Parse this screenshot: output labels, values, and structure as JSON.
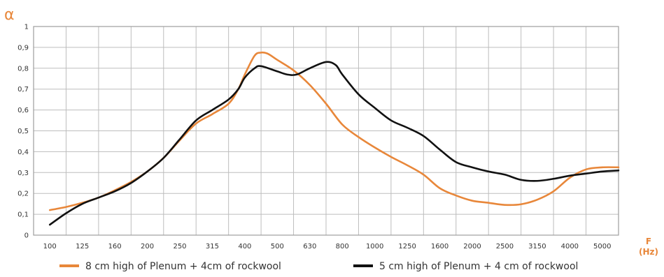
{
  "chart_data": {
    "type": "line",
    "ylabel": "α",
    "xlabel_line1": "F",
    "xlabel_line2": "(Hz)",
    "categories": [
      "100",
      "125",
      "160",
      "200",
      "250",
      "315",
      "400",
      "500",
      "630",
      "800",
      "1000",
      "1250",
      "1600",
      "2000",
      "2500",
      "3150",
      "4000",
      "5000"
    ],
    "y_ticks": [
      "0",
      "0,1",
      "0,2",
      "0,3",
      "0,4",
      "0,5",
      "0,6",
      "0,7",
      "0,8",
      "0,9",
      "1"
    ],
    "ylim": [
      0,
      1
    ],
    "grid": true,
    "legend_position": "bottom",
    "series": [
      {
        "name": "8 cm high of Plenum + 4cm of rockwool",
        "color": "#E8873A",
        "points": [
          [
            0,
            0.12
          ],
          [
            0.5,
            0.135
          ],
          [
            1,
            0.155
          ],
          [
            1.5,
            0.18
          ],
          [
            2,
            0.215
          ],
          [
            2.5,
            0.255
          ],
          [
            3,
            0.305
          ],
          [
            3.5,
            0.37
          ],
          [
            4,
            0.455
          ],
          [
            4.5,
            0.535
          ],
          [
            5,
            0.58
          ],
          [
            5.5,
            0.63
          ],
          [
            5.8,
            0.7
          ],
          [
            6,
            0.77
          ],
          [
            6.3,
            0.86
          ],
          [
            6.5,
            0.875
          ],
          [
            6.7,
            0.87
          ],
          [
            7,
            0.84
          ],
          [
            7.5,
            0.79
          ],
          [
            8,
            0.72
          ],
          [
            8.5,
            0.63
          ],
          [
            9,
            0.53
          ],
          [
            9.5,
            0.47
          ],
          [
            10,
            0.42
          ],
          [
            10.5,
            0.375
          ],
          [
            11,
            0.335
          ],
          [
            11.5,
            0.29
          ],
          [
            12,
            0.225
          ],
          [
            12.5,
            0.19
          ],
          [
            13,
            0.165
          ],
          [
            13.5,
            0.155
          ],
          [
            14,
            0.145
          ],
          [
            14.5,
            0.148
          ],
          [
            15,
            0.17
          ],
          [
            15.5,
            0.21
          ],
          [
            16,
            0.275
          ],
          [
            16.5,
            0.315
          ],
          [
            17,
            0.325
          ],
          [
            17.5,
            0.325
          ]
        ]
      },
      {
        "name": "5 cm high of Plenum + 4 cm of rockwool",
        "color": "#111111",
        "points": [
          [
            0,
            0.05
          ],
          [
            0.5,
            0.105
          ],
          [
            1,
            0.15
          ],
          [
            1.5,
            0.18
          ],
          [
            2,
            0.21
          ],
          [
            2.5,
            0.25
          ],
          [
            3,
            0.305
          ],
          [
            3.5,
            0.37
          ],
          [
            4,
            0.46
          ],
          [
            4.5,
            0.55
          ],
          [
            5,
            0.6
          ],
          [
            5.5,
            0.65
          ],
          [
            5.8,
            0.7
          ],
          [
            6,
            0.755
          ],
          [
            6.3,
            0.8
          ],
          [
            6.5,
            0.81
          ],
          [
            7,
            0.785
          ],
          [
            7.3,
            0.77
          ],
          [
            7.6,
            0.77
          ],
          [
            8,
            0.8
          ],
          [
            8.5,
            0.83
          ],
          [
            8.8,
            0.815
          ],
          [
            9,
            0.77
          ],
          [
            9.5,
            0.675
          ],
          [
            10,
            0.61
          ],
          [
            10.5,
            0.55
          ],
          [
            11,
            0.515
          ],
          [
            11.5,
            0.475
          ],
          [
            12,
            0.41
          ],
          [
            12.5,
            0.35
          ],
          [
            13,
            0.325
          ],
          [
            13.5,
            0.305
          ],
          [
            14,
            0.29
          ],
          [
            14.5,
            0.265
          ],
          [
            15,
            0.26
          ],
          [
            15.5,
            0.27
          ],
          [
            16,
            0.285
          ],
          [
            16.5,
            0.295
          ],
          [
            17,
            0.305
          ],
          [
            17.5,
            0.31
          ]
        ]
      }
    ]
  }
}
